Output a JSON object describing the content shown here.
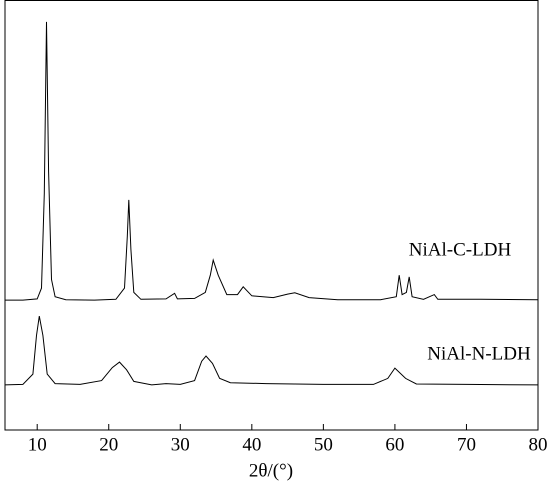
{
  "chart_data": {
    "type": "line",
    "x_label": "2θ/(°)",
    "xlim": [
      5.5,
      80
    ],
    "xticks": [
      10,
      20,
      30,
      40,
      50,
      60,
      70,
      80
    ],
    "ylim": [
      0,
      100
    ],
    "series": [
      {
        "name": "NiAl-C-LDH",
        "color": "#000000",
        "x": [
          5.5,
          8,
          10,
          10.6,
          11.0,
          11.3,
          11.6,
          12.0,
          12.5,
          14,
          18,
          21,
          22.2,
          22.6,
          22.8,
          23.1,
          23.5,
          24.5,
          28,
          29.2,
          29.6,
          32,
          33.5,
          34.2,
          34.6,
          35.3,
          36.5,
          38,
          38.8,
          40,
          43,
          45,
          46,
          48,
          52,
          58,
          60.2,
          60.6,
          61,
          61.6,
          62,
          62.4,
          64,
          65.5,
          66,
          72,
          80
        ],
        "values": [
          30.2,
          30.2,
          30.5,
          33,
          55,
          94.9,
          60,
          35,
          31,
          30.3,
          30.2,
          30.4,
          33,
          45,
          53.5,
          42,
          32,
          30.4,
          30.5,
          31.8,
          30.5,
          30.6,
          32,
          36,
          39.5,
          36,
          31.5,
          31.5,
          33.3,
          31.2,
          30.8,
          31.6,
          31.9,
          30.8,
          30.3,
          30.3,
          31,
          36,
          31.5,
          32,
          35.6,
          31,
          30.4,
          31.5,
          30.4,
          30.4,
          30.3
        ]
      },
      {
        "name": "NiAl-N-LDH",
        "color": "#000000",
        "x": [
          5.5,
          8,
          9.4,
          9.9,
          10.3,
          10.8,
          11.4,
          12.5,
          16,
          19,
          20.5,
          21.5,
          22.5,
          23.5,
          26,
          28,
          30,
          32,
          33,
          33.6,
          34.5,
          35.5,
          37,
          42,
          50,
          57,
          59,
          60,
          61.5,
          63,
          70,
          80
        ],
        "values": [
          10.5,
          10.6,
          13,
          22,
          26.5,
          22,
          13,
          10.8,
          10.6,
          11.5,
          14.5,
          15.8,
          14,
          11.3,
          10.5,
          10.8,
          10.6,
          11.5,
          16,
          17.2,
          15.5,
          12,
          11,
          10.8,
          10.6,
          10.6,
          12,
          14.4,
          12,
          10.7,
          10.6,
          10.5
        ]
      }
    ]
  }
}
